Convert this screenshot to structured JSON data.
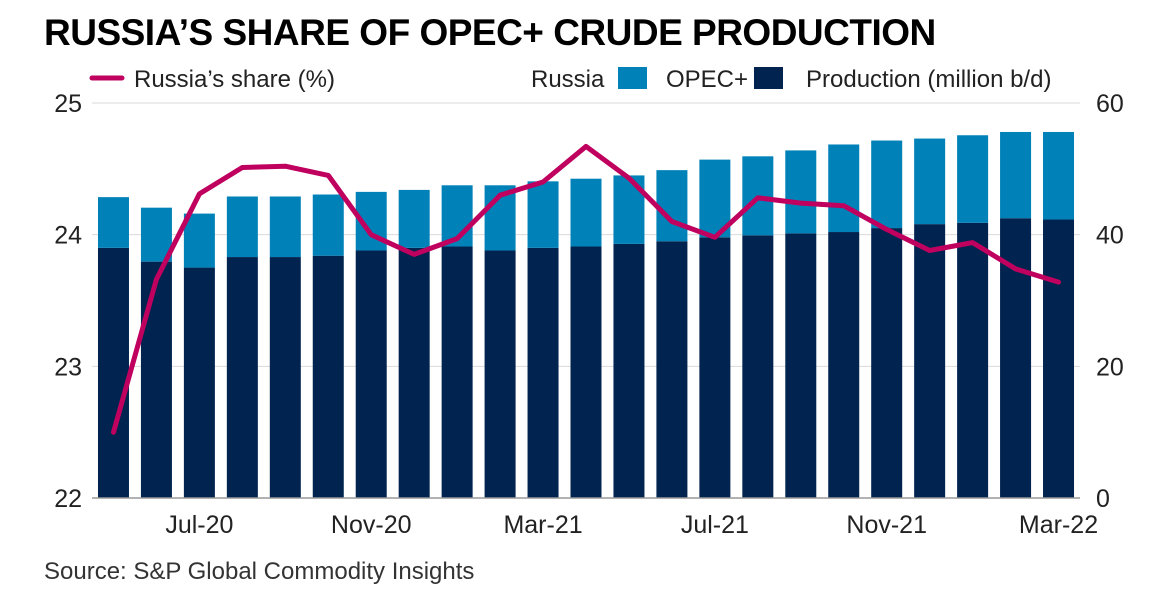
{
  "title": "RUSSIA’S SHARE OF OPEC+ CRUDE PRODUCTION",
  "source": "Source: S&P Global Commodity Insights",
  "colors": {
    "russia": "#00234f",
    "opec": "#0081b8",
    "share": "#c0005e",
    "grid": "#d9d9d9",
    "axis": "#999999"
  },
  "legend": {
    "share": "Russia’s share (%)",
    "russia": "Russia",
    "opec": "OPEC+",
    "production": "Production (million b/d)"
  },
  "chart_data": {
    "type": "bar",
    "categories": [
      "May-20",
      "Jun-20",
      "Jul-20",
      "Aug-20",
      "Sep-20",
      "Oct-20",
      "Nov-20",
      "Dec-20",
      "Jan-21",
      "Feb-21",
      "Mar-21",
      "Apr-21",
      "May-21",
      "Jun-21",
      "Jul-21",
      "Aug-21",
      "Sep-21",
      "Oct-21",
      "Nov-21",
      "Dec-21",
      "Jan-22",
      "Feb-22",
      "Mar-22"
    ],
    "x_tick_labels": [
      "",
      "",
      "Jul-20",
      "",
      "",
      "",
      "Nov-20",
      "",
      "",
      "",
      "Mar-21",
      "",
      "",
      "",
      "Jul-21",
      "",
      "",
      "",
      "Nov-21",
      "",
      "",
      "",
      "Mar-22"
    ],
    "series": [
      {
        "name": "Russia",
        "axis": "right",
        "values": [
          38.0,
          35.9,
          35.0,
          36.6,
          36.6,
          36.8,
          37.6,
          38.0,
          38.2,
          37.6,
          38.0,
          38.2,
          38.6,
          39.0,
          39.6,
          39.9,
          40.2,
          40.4,
          41.0,
          41.6,
          41.8,
          42.5,
          42.3
        ]
      },
      {
        "name": "OPEC+",
        "axis": "right",
        "values": [
          7.7,
          8.2,
          8.2,
          9.2,
          9.2,
          9.3,
          8.9,
          8.8,
          9.3,
          9.9,
          10.1,
          10.3,
          10.4,
          10.8,
          11.8,
          12.0,
          12.6,
          13.3,
          13.3,
          13.0,
          13.3,
          13.1,
          13.3
        ]
      },
      {
        "name": "Russia’s share (%)",
        "type": "line",
        "axis": "left",
        "values": [
          22.5,
          23.66,
          24.31,
          24.51,
          24.52,
          24.45,
          24.0,
          23.85,
          23.97,
          24.3,
          24.4,
          24.67,
          24.43,
          24.1,
          23.98,
          24.28,
          24.24,
          24.22,
          24.04,
          23.88,
          23.94,
          23.74,
          23.64
        ]
      }
    ],
    "y_left": {
      "lim": [
        22,
        25
      ],
      "ticks": [
        22,
        23,
        24,
        25
      ]
    },
    "y_right": {
      "lim": [
        0,
        60
      ],
      "ticks": [
        0,
        20,
        40,
        60
      ]
    },
    "legend_position": "top",
    "grid": "horizontal"
  }
}
